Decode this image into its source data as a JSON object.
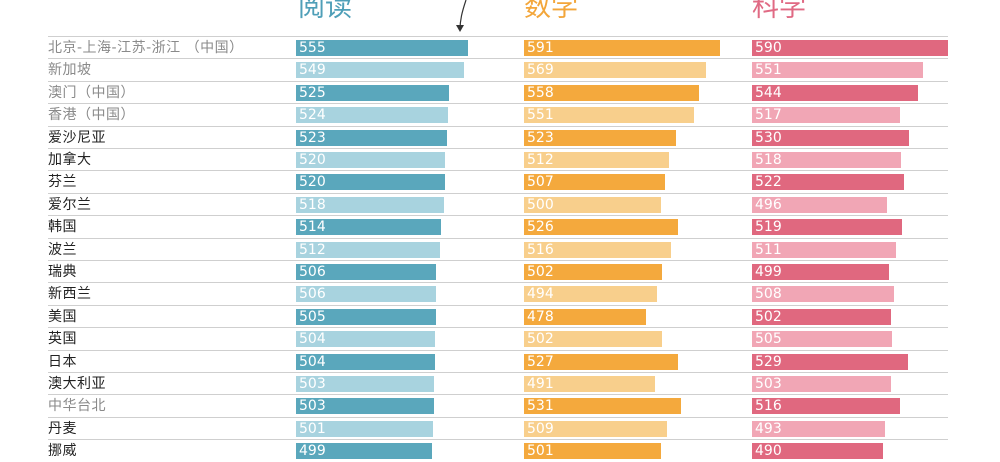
{
  "headers": {
    "reading": "阅读",
    "math": "数学",
    "science": "科学"
  },
  "colors": {
    "reading_dark": "#5aa7bc",
    "reading_light": "#a8d3df",
    "math_dark": "#f4a93d",
    "math_light": "#f8cf8c",
    "science_dark": "#e0687f",
    "science_light": "#f1a6b5",
    "label_dark": "#222222",
    "label_light": "#8a8a8a"
  },
  "chart_data": {
    "type": "bar",
    "orientation": "horizontal",
    "layout": "small multiples (three panels)",
    "series_names": [
      "阅读",
      "数学",
      "科学"
    ],
    "categories": [
      "北京-上海-江苏-浙江 （中国）",
      "新加坡",
      "澳门（中国）",
      "香港（中国）",
      "爱沙尼亚",
      "加拿大",
      "芬兰",
      "爱尔兰",
      "韩国",
      "波兰",
      "瑞典",
      "新西兰",
      "美国",
      "英国",
      "日本",
      "澳大利亚",
      "中华台北",
      "丹麦",
      "挪威"
    ],
    "category_style": [
      "light",
      "light",
      "light",
      "light",
      "dark",
      "dark",
      "dark",
      "dark",
      "dark",
      "dark",
      "dark",
      "dark",
      "dark",
      "dark",
      "dark",
      "dark",
      "light",
      "dark",
      "dark"
    ],
    "bar_style": [
      "dark",
      "light",
      "dark",
      "light",
      "dark",
      "light",
      "dark",
      "light",
      "dark",
      "light",
      "dark",
      "light",
      "dark",
      "light",
      "dark",
      "light",
      "dark",
      "light",
      "dark"
    ],
    "series": [
      {
        "name": "阅读",
        "values": [
          555,
          549,
          525,
          524,
          523,
          520,
          520,
          518,
          514,
          512,
          506,
          506,
          505,
          504,
          504,
          503,
          503,
          501,
          499
        ]
      },
      {
        "name": "数学",
        "values": [
          591,
          569,
          558,
          551,
          523,
          512,
          507,
          500,
          526,
          516,
          502,
          494,
          478,
          502,
          527,
          491,
          531,
          509,
          501
        ]
      },
      {
        "name": "科学",
        "values": [
          590,
          551,
          544,
          517,
          530,
          518,
          522,
          496,
          519,
          511,
          499,
          508,
          502,
          505,
          529,
          503,
          516,
          493,
          490
        ]
      }
    ],
    "xlim": [
      0,
      600
    ]
  }
}
